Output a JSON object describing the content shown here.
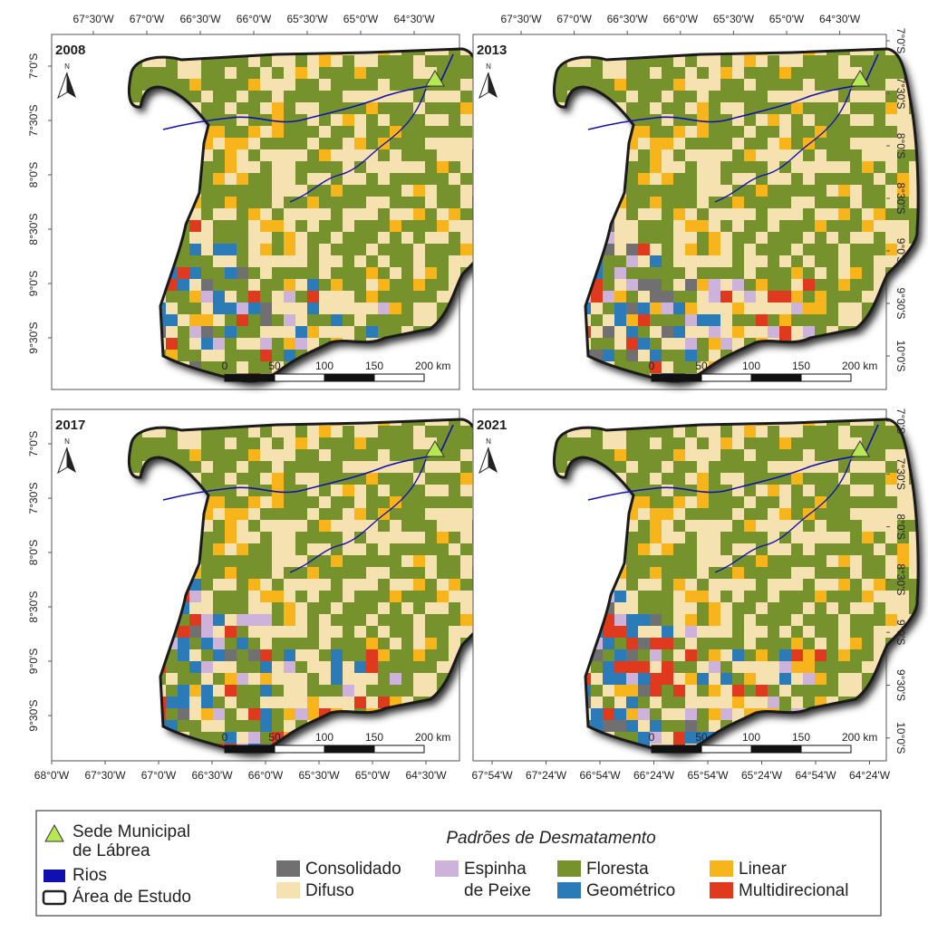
{
  "panels": [
    {
      "year": "2008",
      "north": "N",
      "scale_labels": [
        "0",
        "50",
        "100",
        "150",
        "200 km"
      ],
      "labels": {
        "top": [
          "67°30'W",
          "67°0'W",
          "66°30'W",
          "66°0'W",
          "65°30'W",
          "65°0'W",
          "64°30'W"
        ],
        "left": [
          "7°0'S",
          "7°30'S",
          "8°0'S",
          "8°30'S",
          "9°0'S",
          "9°30'S"
        ]
      }
    },
    {
      "year": "2013",
      "north": "N",
      "scale_labels": [
        "0",
        "50",
        "100",
        "150",
        "200 km"
      ],
      "labels": {
        "top": [
          "67°30'W",
          "67°0'W",
          "66°30'W",
          "66°0'W",
          "65°30'W",
          "65°0'W",
          "64°30'W"
        ],
        "right": [
          "7°0'S",
          "7°30'S",
          "8°0'S",
          "8°30'S",
          "9°0'S",
          "9°30'S",
          "10°0'S"
        ]
      }
    },
    {
      "year": "2017",
      "north": "N",
      "scale_labels": [
        "0",
        "50",
        "100",
        "150",
        "200 km"
      ],
      "labels": {
        "left": [
          "7°0'S",
          "7°30'S",
          "8°0'S",
          "8°30'S",
          "9°0'S",
          "9°30'S"
        ],
        "bottom": [
          "68°0'W",
          "67°30'W",
          "67°0'W",
          "66°30'W",
          "66°0'W",
          "65°30'W",
          "65°0'W",
          "64°30'W"
        ]
      }
    },
    {
      "year": "2021",
      "north": "N",
      "scale_labels": [
        "0",
        "50",
        "100",
        "150",
        "200 km"
      ],
      "labels": {
        "right": [
          "7°0'S",
          "7°30'S",
          "8°0'S",
          "8°30'S",
          "9°0'S",
          "9°30'S",
          "10°0'S"
        ],
        "bottom": [
          "67°54'W",
          "67°24'W",
          "66°54'W",
          "66°24'W",
          "65°54'W",
          "65°24'W",
          "64°54'W",
          "64°24'W"
        ]
      }
    }
  ],
  "legend": {
    "symbols": [
      {
        "lines": [
          "Sede Municipal",
          "de Lábrea"
        ],
        "color": "#b5e853"
      },
      {
        "lines": [
          "Rios"
        ],
        "color": "#1010b0"
      },
      {
        "lines": [
          "Área de Estudo"
        ],
        "color": "#222222"
      }
    ],
    "title": "Padrões de Desmatamento",
    "classes": [
      {
        "lines": [
          "Consolidado"
        ],
        "color": "#707070"
      },
      {
        "lines": [
          "Difuso"
        ],
        "color": "#f6e2b0"
      },
      {
        "lines": [
          "Espinha",
          "de Peixe"
        ],
        "color": "#cdb3da"
      },
      {
        "lines": [
          "Floresta"
        ],
        "color": "#76922d"
      },
      {
        "lines": [
          "Geométrico"
        ],
        "color": "#2b7bb9"
      },
      {
        "lines": [
          "Linear"
        ],
        "color": "#f8b51b"
      },
      {
        "lines": [
          "Multidirecional"
        ],
        "color": "#e03a1e"
      }
    ]
  }
}
